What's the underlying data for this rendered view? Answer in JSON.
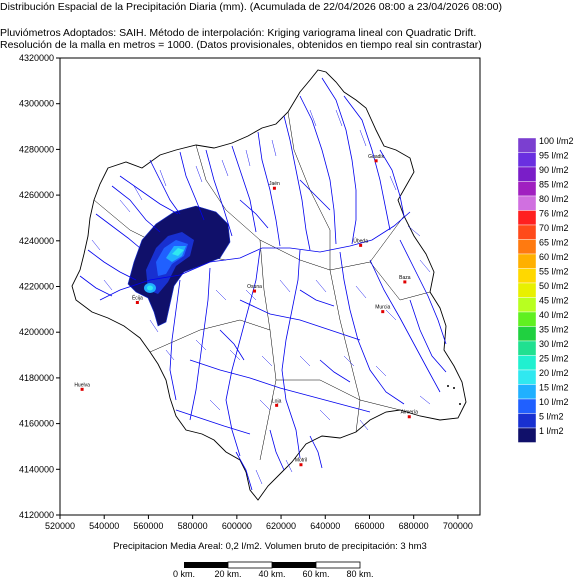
{
  "header": {
    "line1": "Distribución Espacial de la Precipitación Diaria (mm). (Acumulada de 22/04/2026 08:00 a 23/04/2026 08:00)",
    "line2": "Pluviómetros Adoptados: SAIH.  Método de interpolación: Kriging variograma lineal con Quadratic Drift.",
    "line3": "Resolución de la malla en metros = 1000. (Datos provisionales, obtenidos en tiempo real sin contrastar)"
  },
  "axes": {
    "x_ticks": [
      "520000",
      "540000",
      "560000",
      "580000",
      "600000",
      "620000",
      "640000",
      "660000",
      "680000",
      "700000"
    ],
    "y_ticks": [
      "4320000",
      "4300000",
      "4280000",
      "4260000",
      "4240000",
      "4220000",
      "4200000",
      "4180000",
      "4160000",
      "4140000",
      "4120000"
    ]
  },
  "towns": [
    {
      "name": "Jaén",
      "x": 617000,
      "y": 4263000
    },
    {
      "name": "Úbeda",
      "x": 656000,
      "y": 4238000
    },
    {
      "name": "Baza",
      "x": 676000,
      "y": 4222000
    },
    {
      "name": "Huelva",
      "x": 530000,
      "y": 4175000
    },
    {
      "name": "Guadix",
      "x": 663000,
      "y": 4275000
    },
    {
      "name": "Osuna",
      "x": 608000,
      "y": 4218000
    },
    {
      "name": "Écija",
      "x": 555000,
      "y": 4213000
    },
    {
      "name": "Murcia",
      "x": 666000,
      "y": 4209000
    },
    {
      "name": "Loja",
      "x": 618000,
      "y": 4168000
    },
    {
      "name": "Motril",
      "x": 629000,
      "y": 4142000
    },
    {
      "name": "Almería",
      "x": 678000,
      "y": 4163000
    }
  ],
  "legend": {
    "items": [
      {
        "label": "100 l/m2",
        "color": "#7b3fd0"
      },
      {
        "label": "95 l/m2",
        "color": "#6a2fe0"
      },
      {
        "label": "90 l/m2",
        "color": "#7a1ec8"
      },
      {
        "label": "85 l/m2",
        "color": "#a020c0"
      },
      {
        "label": "80 l/m2",
        "color": "#d070e0"
      },
      {
        "label": "76 l/m2",
        "color": "#ff2020"
      },
      {
        "label": "70 l/m2",
        "color": "#ff4a1a"
      },
      {
        "label": "65 l/m2",
        "color": "#ff7a10"
      },
      {
        "label": "60 l/m2",
        "color": "#ffb000"
      },
      {
        "label": "55 l/m2",
        "color": "#ffd800"
      },
      {
        "label": "50 l/m2",
        "color": "#e8f000"
      },
      {
        "label": "45 l/m2",
        "color": "#b8ff20"
      },
      {
        "label": "40 l/m2",
        "color": "#60f020"
      },
      {
        "label": "35 l/m2",
        "color": "#20d040"
      },
      {
        "label": "30 l/m2",
        "color": "#20e090"
      },
      {
        "label": "25 l/m2",
        "color": "#20f0d0"
      },
      {
        "label": "20 l/m2",
        "color": "#30e8f0"
      },
      {
        "label": "15 l/m2",
        "color": "#20b0ff"
      },
      {
        "label": "10 l/m2",
        "color": "#2060ff"
      },
      {
        "label": "5 l/m2",
        "color": "#1830d0"
      },
      {
        "label": "1 l/m2",
        "color": "#10106a"
      }
    ]
  },
  "footer": {
    "text": "Precipitacion Media Areal: 0,2 l/m2. Volumen bruto de precipitación: 3 hm3"
  },
  "scale": {
    "labels": [
      "0 km.",
      "20 km.",
      "40 km.",
      "60 km.",
      "80 km."
    ]
  }
}
